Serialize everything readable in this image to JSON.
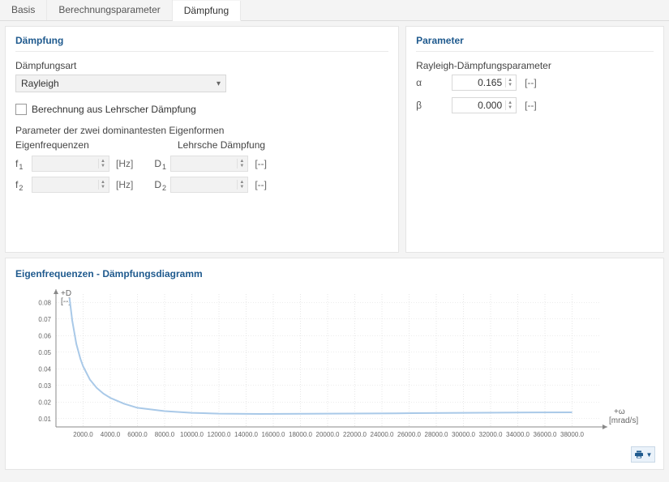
{
  "tabs": {
    "items": [
      "Basis",
      "Berechnungsparameter",
      "Dämpfung"
    ],
    "active_index": 2
  },
  "damping_panel": {
    "title": "Dämpfung",
    "type_label": "Dämpfungsart",
    "type_value": "Rayleigh",
    "lehr_checkbox_label": "Berechnung aus Lehrscher Dämpfung",
    "lehr_checked": false,
    "dominant_label": "Parameter der zwei dominantesten Eigenformen",
    "col_freq_label": "Eigenfrequenzen",
    "col_lehr_label": "Lehrsche Dämpfung",
    "f1_label": "f",
    "f1_sub": "1",
    "f1_value": "",
    "f1_unit": "[Hz]",
    "f2_label": "f",
    "f2_sub": "2",
    "f2_value": "",
    "f2_unit": "[Hz]",
    "d1_label": "D",
    "d1_sub": "1",
    "d1_value": "",
    "d1_unit": "[--]",
    "d2_label": "D",
    "d2_sub": "2",
    "d2_value": "",
    "d2_unit": "[--]"
  },
  "parameter_panel": {
    "title": "Parameter",
    "subtitle": "Rayleigh-Dämpfungsparameter",
    "alpha_label": "α",
    "alpha_value": "0.165",
    "alpha_unit": "[--]",
    "beta_label": "β",
    "beta_value": "0.000",
    "beta_unit": "[--]"
  },
  "chart": {
    "title": "Eigenfrequenzen - Dämpfungsdiagramm",
    "type": "line",
    "y_axis_label_top": "+D",
    "y_axis_label_sub": "[--]",
    "x_axis_label_top": "+ω",
    "x_axis_label_sub": "[mrad/s]",
    "x_ticks": [
      2000.0,
      4000.0,
      6000.0,
      8000.0,
      10000.0,
      12000.0,
      14000.0,
      16000.0,
      18000.0,
      20000.0,
      22000.0,
      24000.0,
      26000.0,
      28000.0,
      30000.0,
      32000.0,
      34000.0,
      36000.0,
      38000.0
    ],
    "y_ticks": [
      0.01,
      0.02,
      0.03,
      0.04,
      0.05,
      0.06,
      0.07,
      0.08
    ],
    "xlim": [
      0,
      40000
    ],
    "ylim": [
      0.005,
      0.085
    ],
    "line_color": "#a9c9e8",
    "line_width": 2,
    "grid_color": "#d8d8d8",
    "axis_color": "#888888",
    "background_color": "#ffffff",
    "tick_fontsize": 8,
    "data": [
      {
        "x": 1000,
        "y": 0.0825
      },
      {
        "x": 1200,
        "y": 0.069
      },
      {
        "x": 1500,
        "y": 0.055
      },
      {
        "x": 1800,
        "y": 0.046
      },
      {
        "x": 2000,
        "y": 0.0415
      },
      {
        "x": 2500,
        "y": 0.0335
      },
      {
        "x": 3000,
        "y": 0.0285
      },
      {
        "x": 3500,
        "y": 0.025
      },
      {
        "x": 4000,
        "y": 0.0225
      },
      {
        "x": 5000,
        "y": 0.019
      },
      {
        "x": 6000,
        "y": 0.0165
      },
      {
        "x": 8000,
        "y": 0.0145
      },
      {
        "x": 10000,
        "y": 0.0135
      },
      {
        "x": 12000,
        "y": 0.013
      },
      {
        "x": 15000,
        "y": 0.0128
      },
      {
        "x": 20000,
        "y": 0.013
      },
      {
        "x": 25000,
        "y": 0.0132
      },
      {
        "x": 30000,
        "y": 0.0135
      },
      {
        "x": 35000,
        "y": 0.0137
      },
      {
        "x": 38000,
        "y": 0.0138
      }
    ]
  }
}
